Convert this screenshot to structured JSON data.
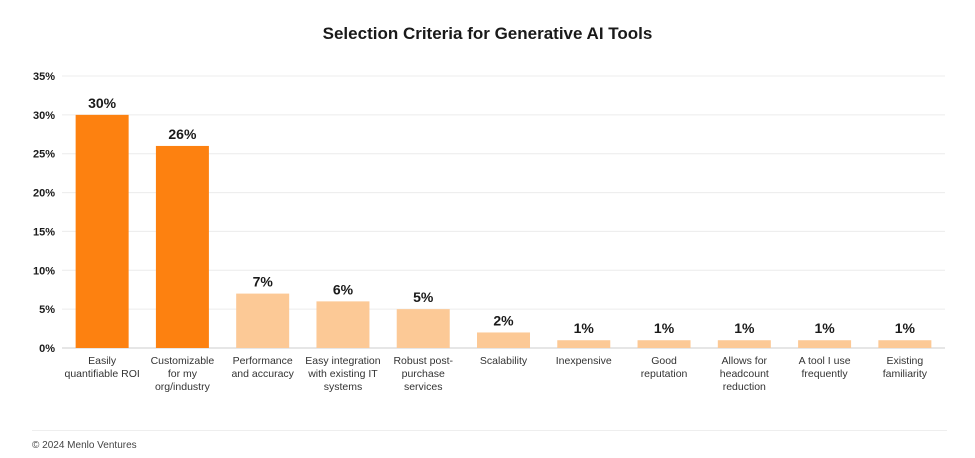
{
  "chart_data": {
    "type": "bar",
    "title": "Selection Criteria for Generative AI Tools",
    "xlabel": "",
    "ylabel": "",
    "ylim": [
      0,
      35
    ],
    "yticks": [
      0,
      5,
      10,
      15,
      20,
      25,
      30,
      35
    ],
    "ytick_labels": [
      "0%",
      "5%",
      "10%",
      "15%",
      "20%",
      "25%",
      "30%",
      "35%"
    ],
    "grid": true,
    "categories": [
      [
        "Easily",
        "quantifiable ROI"
      ],
      [
        "Customizable",
        "for my",
        "org/industry"
      ],
      [
        "Performance",
        "and accuracy"
      ],
      [
        "Easy integration",
        "with existing IT",
        "systems"
      ],
      [
        "Robust post-",
        "purchase",
        "services"
      ],
      [
        "Scalability"
      ],
      [
        "Inexpensive"
      ],
      [
        "Good",
        "reputation"
      ],
      [
        "Allows for",
        "headcount",
        "reduction"
      ],
      [
        "A tool I use",
        "frequently"
      ],
      [
        "Existing",
        "familiarity"
      ]
    ],
    "values": [
      30,
      26,
      7,
      6,
      5,
      2,
      1,
      1,
      1,
      1,
      1
    ],
    "value_labels": [
      "30%",
      "26%",
      "7%",
      "6%",
      "5%",
      "2%",
      "1%",
      "1%",
      "1%",
      "1%",
      "1%"
    ],
    "colors": {
      "highlight": "#fd8110",
      "muted": "#fcc996",
      "grid": "#ececec",
      "axis": "#cccccc"
    },
    "highlight_count": 2
  },
  "footer": {
    "copyright": "© 2024 Menlo Ventures"
  }
}
